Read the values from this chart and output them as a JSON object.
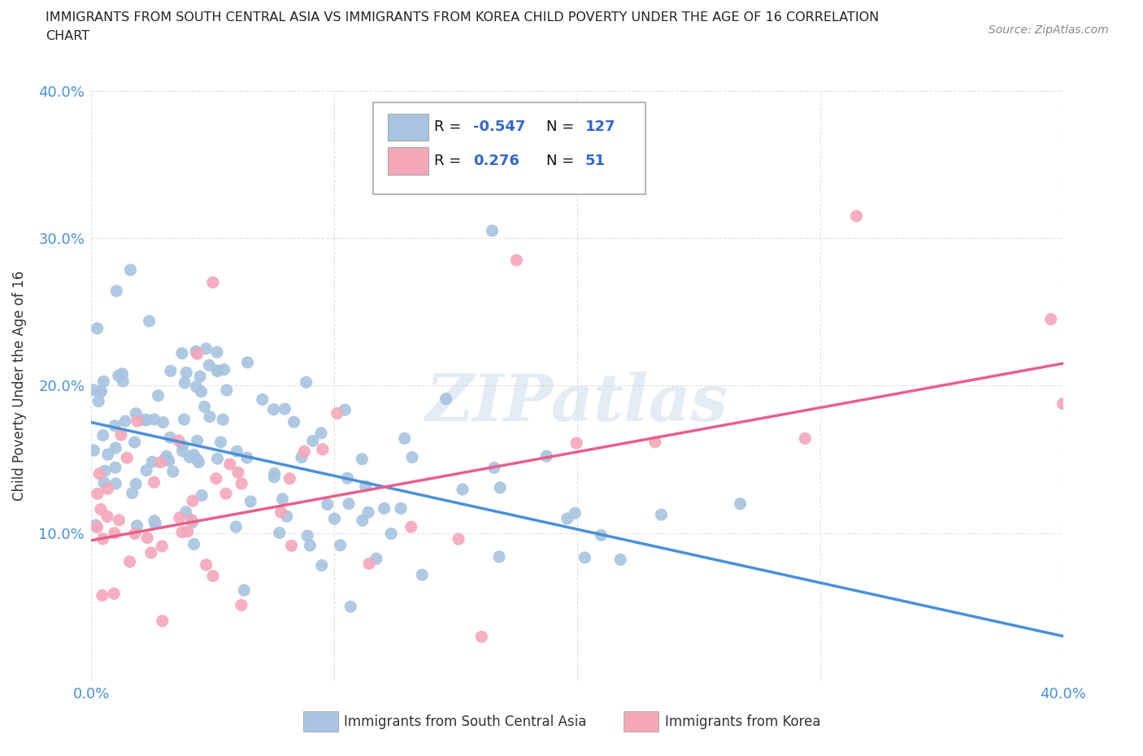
{
  "title_line1": "IMMIGRANTS FROM SOUTH CENTRAL ASIA VS IMMIGRANTS FROM KOREA CHILD POVERTY UNDER THE AGE OF 16 CORRELATION",
  "title_line2": "CHART",
  "source_text": "Source: ZipAtlas.com",
  "ylabel": "Child Poverty Under the Age of 16",
  "xmin": 0.0,
  "xmax": 0.4,
  "ymin": 0.0,
  "ymax": 0.4,
  "blue_color": "#a8c4e0",
  "pink_color": "#f4a7b9",
  "blue_line_color": "#4a90d9",
  "pink_line_color": "#e8608a",
  "R_blue": -0.547,
  "N_blue": 127,
  "R_pink": 0.276,
  "N_pink": 51,
  "watermark": "ZIPatlas",
  "legend_label_blue": "Immigrants from South Central Asia",
  "legend_label_pink": "Immigrants from Korea",
  "grid_color": "#cccccc",
  "background_color": "#ffffff",
  "tick_label_color": "#4a90d9",
  "axis_label_color": "#333333",
  "title_color": "#222222",
  "source_color": "#888888"
}
